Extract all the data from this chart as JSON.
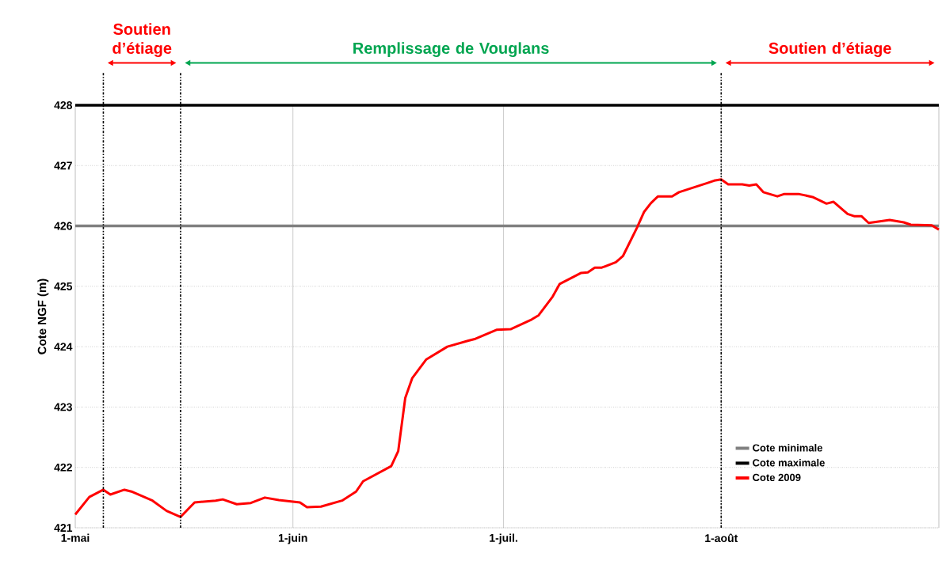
{
  "chart_data": {
    "type": "line",
    "ylabel": "Cote NGF (m)",
    "annotations": [
      "Soutien d’étiage",
      "Remplissage de Vouglans",
      "Soutien d’étiage"
    ],
    "xlim": [
      "2009-05-01",
      "2009-09-01"
    ],
    "xticks": [
      {
        "value": "2009-05-01",
        "label": "1-mai"
      },
      {
        "value": "2009-06-01",
        "label": "1-juin"
      },
      {
        "value": "2009-07-01",
        "label": "1-juil."
      },
      {
        "value": "2009-08-01",
        "label": "1-août"
      },
      {
        "value": "2009-09-01",
        "label": null
      }
    ],
    "ylim": [
      421,
      428
    ],
    "yticks": [
      421,
      422,
      423,
      424,
      425,
      426,
      427,
      428
    ],
    "grid": true,
    "legend": "bottom right",
    "line_style": "solid",
    "ref_lines": [
      {
        "axis": "x",
        "value": "2009-05-05",
        "color": "#000000",
        "line_style": "dashed"
      },
      {
        "axis": "x",
        "value": "2009-05-16",
        "color": "#000000",
        "line_style": "dashed"
      },
      {
        "axis": "x",
        "value": "2009-08-01",
        "color": "#000000",
        "line_style": "dashed"
      }
    ],
    "series": [
      {
        "name": "Cote minimale",
        "color": "#808080",
        "x": [
          "2009-05-01",
          "2009-09-01"
        ],
        "values": [
          426,
          426
        ]
      },
      {
        "name": "Cote maximale",
        "color": "#000000",
        "x": [
          "2009-05-01",
          "2009-09-01"
        ],
        "values": [
          428,
          428
        ]
      },
      {
        "name": "Cote 2009",
        "color": "#ff0000",
        "x": [
          "2009-05-01",
          "2009-05-03",
          "2009-05-05",
          "2009-05-06",
          "2009-05-08",
          "2009-05-09",
          "2009-05-12",
          "2009-05-14",
          "2009-05-16",
          "2009-05-18",
          "2009-05-21",
          "2009-05-22",
          "2009-05-24",
          "2009-05-26",
          "2009-05-28",
          "2009-05-30",
          "2009-06-02",
          "2009-06-03",
          "2009-06-05",
          "2009-06-08",
          "2009-06-10",
          "2009-06-11",
          "2009-06-15",
          "2009-06-16",
          "2009-06-17",
          "2009-06-18",
          "2009-06-20",
          "2009-06-23",
          "2009-06-26",
          "2009-06-27",
          "2009-06-30",
          "2009-07-02",
          "2009-07-05",
          "2009-07-06",
          "2009-07-08",
          "2009-07-09",
          "2009-07-12",
          "2009-07-13",
          "2009-07-14",
          "2009-07-15",
          "2009-07-17",
          "2009-07-18",
          "2009-07-20",
          "2009-07-21",
          "2009-07-22",
          "2009-07-23",
          "2009-07-25",
          "2009-07-26",
          "2009-07-30",
          "2009-07-31",
          "2009-08-01",
          "2009-08-02",
          "2009-08-04",
          "2009-08-05",
          "2009-08-06",
          "2009-08-07",
          "2009-08-09",
          "2009-08-10",
          "2009-08-12",
          "2009-08-14",
          "2009-08-16",
          "2009-08-17",
          "2009-08-19",
          "2009-08-20",
          "2009-08-21",
          "2009-08-22",
          "2009-08-25",
          "2009-08-27",
          "2009-08-28",
          "2009-08-31",
          "2009-09-01"
        ],
        "values": [
          421.22,
          421.51,
          421.63,
          421.55,
          421.63,
          421.6,
          421.45,
          421.28,
          421.18,
          421.42,
          421.45,
          421.47,
          421.39,
          421.41,
          421.5,
          421.46,
          421.42,
          421.34,
          421.35,
          421.45,
          421.6,
          421.77,
          422.02,
          422.27,
          423.15,
          423.48,
          423.79,
          424.0,
          424.1,
          424.13,
          424.28,
          424.29,
          424.45,
          424.52,
          424.83,
          425.04,
          425.22,
          425.23,
          425.31,
          425.31,
          425.4,
          425.5,
          425.97,
          426.23,
          426.38,
          426.49,
          426.49,
          426.56,
          426.71,
          426.75,
          426.77,
          426.69,
          426.69,
          426.67,
          426.69,
          426.56,
          426.49,
          426.53,
          426.53,
          426.48,
          426.37,
          426.4,
          426.2,
          426.16,
          426.16,
          426.05,
          426.1,
          426.06,
          426.02,
          426.01,
          425.94
        ]
      }
    ]
  }
}
